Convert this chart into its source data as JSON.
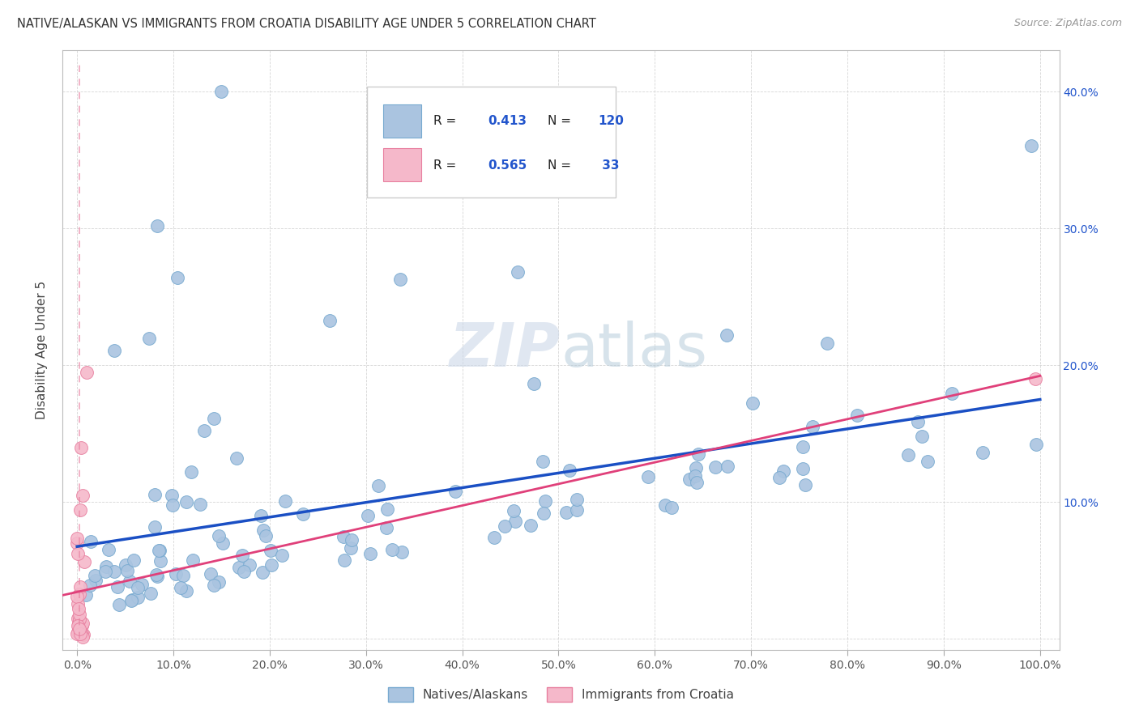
{
  "title": "NATIVE/ALASKAN VS IMMIGRANTS FROM CROATIA DISABILITY AGE UNDER 5 CORRELATION CHART",
  "source": "Source: ZipAtlas.com",
  "ylabel": "Disability Age Under 5",
  "blue_color": "#aac4e0",
  "blue_edge_color": "#78aad0",
  "pink_color": "#f5b8ca",
  "pink_edge_color": "#e880a0",
  "regression_blue_color": "#1a4fc4",
  "regression_pink_color": "#e0407a",
  "background_color": "#ffffff",
  "grid_color": "#cccccc",
  "watermark_color": "#ccd8e8",
  "R_blue": 0.413,
  "N_blue": 120,
  "R_pink": 0.565,
  "N_pink": 33,
  "legend_text_color": "#222222",
  "legend_value_color": "#2255cc",
  "right_tick_color": "#2255cc",
  "title_color": "#333333",
  "source_color": "#999999"
}
